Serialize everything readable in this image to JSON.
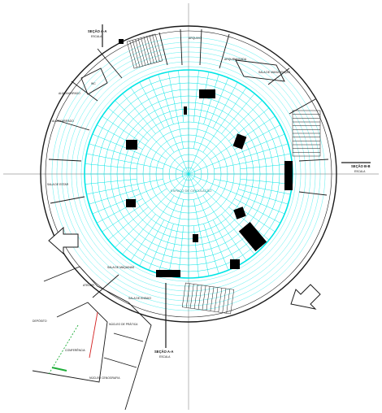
{
  "drawing": {
    "center_label": "ESPAÇO DE CIRCULAÇÃO",
    "section_marks": [
      {
        "id": "north",
        "text": "SEÇÃO A-A",
        "sub": "ESCALA"
      },
      {
        "id": "east",
        "text": "SEÇÃO B-B",
        "sub": "ESCALA"
      },
      {
        "id": "south",
        "text": "SEÇÃO A-A",
        "sub": "ESCALA"
      }
    ],
    "rooms": [
      {
        "id": "almox-1",
        "text": "ALMOXARIFADO"
      },
      {
        "id": "almox-2",
        "text": "ALMOXARIFADO"
      },
      {
        "id": "sala-estar",
        "text": "SALA DE ESTAR"
      },
      {
        "id": "wc",
        "text": "WC"
      },
      {
        "id": "sala-manutencao",
        "text": "SALA DE MANUTENÇÃO"
      },
      {
        "id": "sala-maquinas",
        "text": "SALA DE MÁQUINAS"
      },
      {
        "id": "arquivo",
        "text": "ARQUIVO"
      },
      {
        "id": "arquibancada",
        "text": "ARQUIBANCADA"
      },
      {
        "id": "sala-ensaio",
        "text": "SALA DE ENSAIO"
      },
      {
        "id": "deposito",
        "text": "DEPÓSITO"
      },
      {
        "id": "atelier",
        "text": "ATELIER"
      },
      {
        "id": "conferencia",
        "text": "CONFERÊNCIA"
      },
      {
        "id": "nucleo-pratica",
        "text": "NÚCLEO DE PRÁTICA"
      },
      {
        "id": "nucleo-cenografia",
        "text": "NÚCLEO CENOGRAFIA"
      }
    ],
    "colors": {
      "grid": "#00e5e5",
      "wall": "#1a1a1a",
      "fill": "#000000",
      "axis": "#9a9a9a",
      "accent_red": "#d42020",
      "accent_green": "#1fae3a"
    }
  }
}
